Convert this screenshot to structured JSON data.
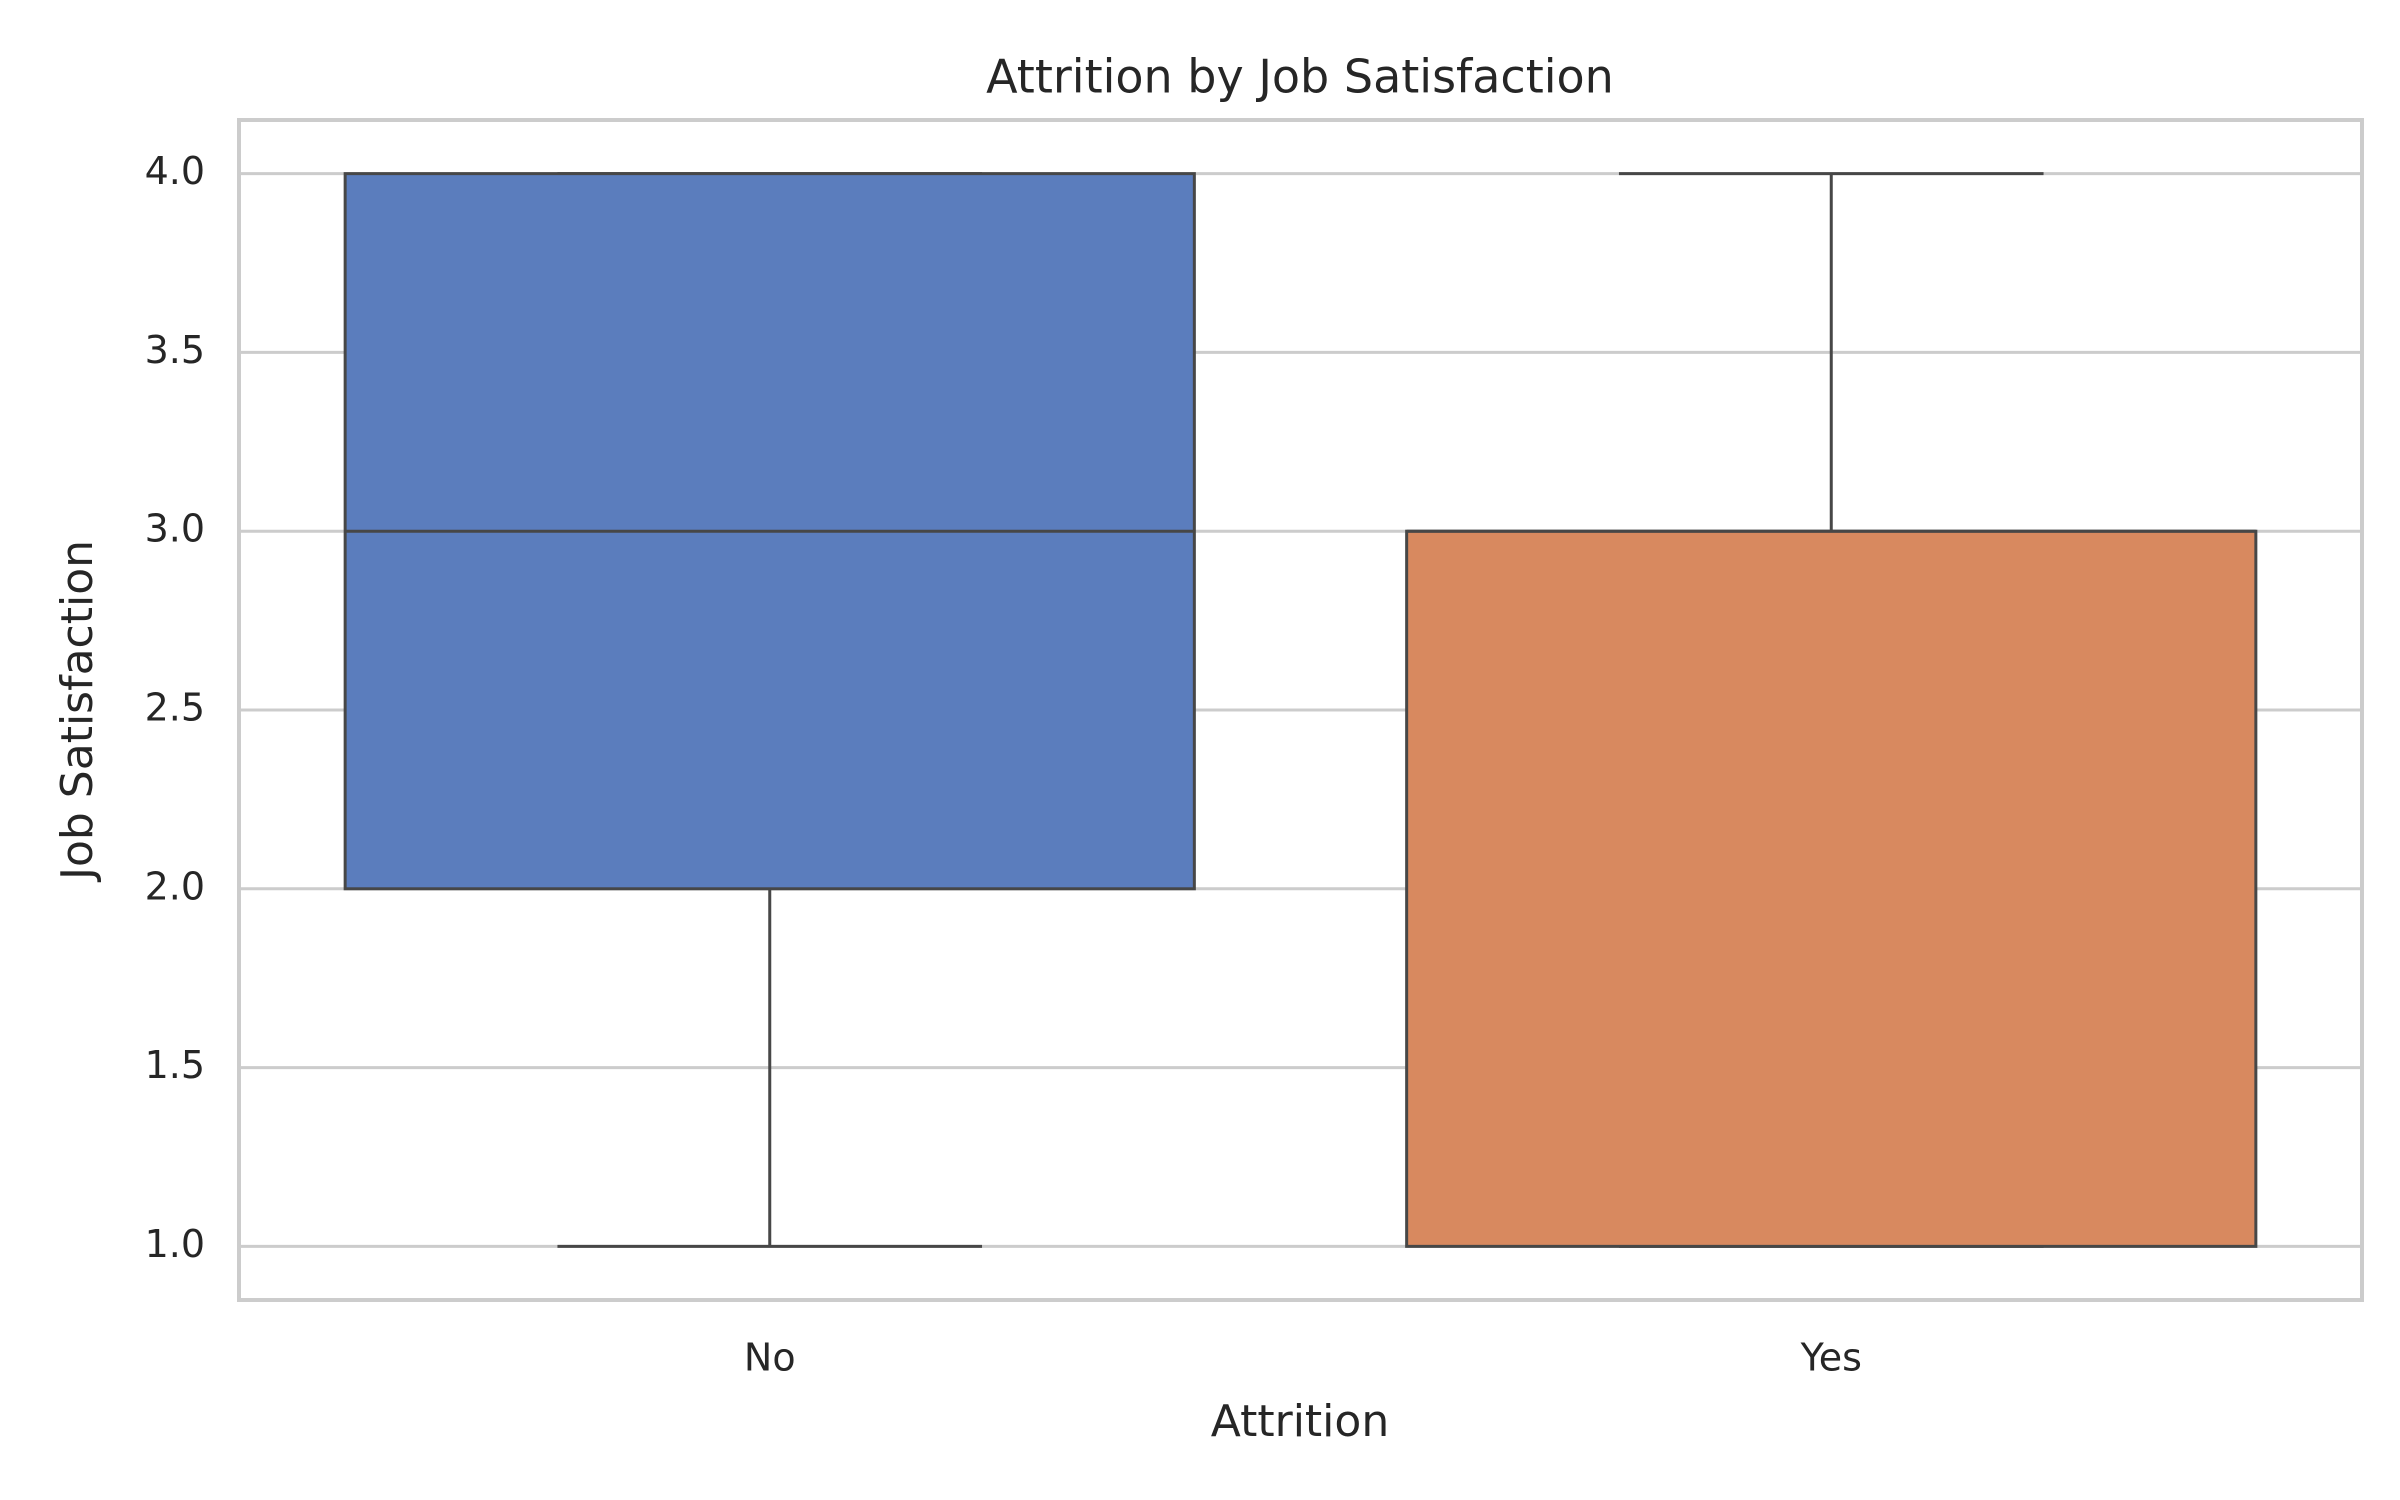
{
  "chart_data": {
    "type": "box",
    "title": "Attrition by Job Satisfaction",
    "x_label": "Attrition",
    "y_label": "Job Satisfaction",
    "categories": [
      "No",
      "Yes"
    ],
    "boxes": [
      {
        "whislo": 1,
        "q1": 2,
        "med": 3,
        "q3": 4,
        "whishi": 4,
        "color": "#5b7dbd"
      },
      {
        "whislo": 1,
        "q1": 1,
        "med": 3,
        "q3": 3,
        "whishi": 4,
        "color": "#d8895f"
      }
    ],
    "ylim": [
      0.85,
      4.15
    ],
    "yticks": [
      {
        "value": 1,
        "label": "1.0"
      },
      1.5,
      {
        "value": 2,
        "label": "2.0"
      },
      2.5,
      {
        "value": 3,
        "label": "3.0"
      },
      3.5,
      {
        "value": 4,
        "label": "4.0"
      }
    ],
    "grid": true
  }
}
